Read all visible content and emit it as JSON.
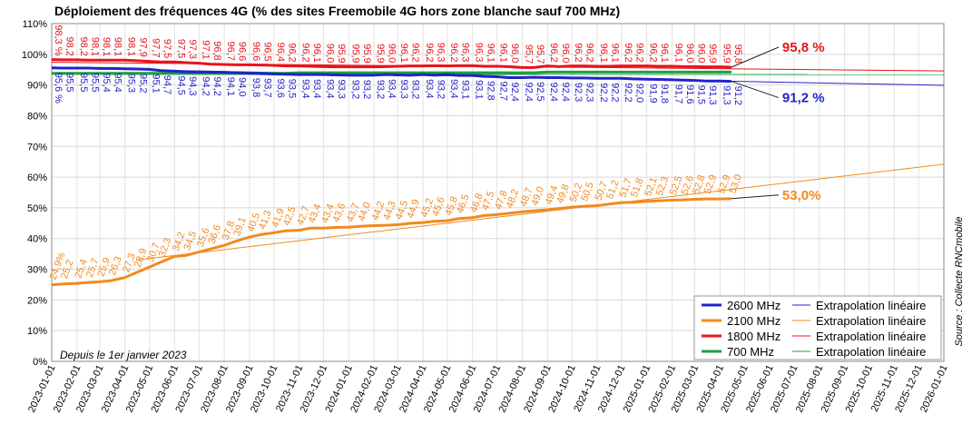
{
  "chart_data": {
    "type": "line",
    "title": "Déploiement des fréquences 4G (% des sites Freemobile 4G hors zone blanche sauf 700 MHz)",
    "note": "Depuis le 1er janvier 2023",
    "source": "Source : Collecte RNCmobile",
    "grid": true,
    "legend": "lower right",
    "xlim": [
      "2023-01-01",
      "2026-01-01"
    ],
    "xticks": [
      "2023-01-01",
      "2023-02-01",
      "2023-03-01",
      "2023-04-01",
      "2023-05-01",
      "2023-06-01",
      "2023-07-01",
      "2023-08-01",
      "2023-09-01",
      "2023-10-01",
      "2023-11-01",
      "2023-12-01",
      "2024-01-01",
      "2024-02-01",
      "2024-03-01",
      "2024-04-01",
      "2024-05-01",
      "2024-06-01",
      "2024-07-01",
      "2024-08-01",
      "2024-09-01",
      "2024-10-01",
      "2024-11-01",
      "2024-12-01",
      "2025-01-01",
      "2025-02-01",
      "2025-03-01",
      "2025-04-01",
      "2025-05-01",
      "2025-06-01",
      "2025-07-01",
      "2025-08-01",
      "2025-09-01",
      "2025-10-01",
      "2025-11-01",
      "2025-12-01",
      "2026-01-01"
    ],
    "ylim": [
      0,
      110
    ],
    "yticks": [
      {
        "value": 0,
        "label": "0%"
      },
      {
        "value": 10,
        "label": "10%"
      },
      {
        "value": 20,
        "label": "20%"
      },
      {
        "value": 30,
        "label": "30%"
      },
      {
        "value": 40,
        "label": "40%"
      },
      {
        "value": 50,
        "label": "50%"
      },
      {
        "value": 60,
        "label": "60%"
      },
      {
        "value": 70,
        "label": "70%"
      },
      {
        "value": 80,
        "label": "80%"
      },
      {
        "value": 90,
        "label": "90%"
      },
      {
        "value": 100,
        "label": "100%"
      },
      {
        "value": 110,
        "label": "110%"
      }
    ],
    "x": [
      "2023-01-01",
      "2023-01-15",
      "2023-02-01",
      "2023-02-15",
      "2023-03-01",
      "2023-03-15",
      "2023-04-01",
      "2023-04-15",
      "2023-05-01",
      "2023-05-15",
      "2023-06-01",
      "2023-06-15",
      "2023-07-01",
      "2023-07-15",
      "2023-08-01",
      "2023-08-15",
      "2023-09-01",
      "2023-09-15",
      "2023-10-01",
      "2023-10-15",
      "2023-11-01",
      "2023-11-15",
      "2023-12-01",
      "2023-12-15",
      "2024-01-01",
      "2024-01-15",
      "2024-02-01",
      "2024-02-15",
      "2024-03-01",
      "2024-03-15",
      "2024-04-01",
      "2024-04-15",
      "2024-05-01",
      "2024-05-15",
      "2024-06-01",
      "2024-06-15",
      "2024-07-01",
      "2024-07-15",
      "2024-08-01",
      "2024-08-15",
      "2024-09-01",
      "2024-09-15",
      "2024-10-01",
      "2024-10-15",
      "2024-11-01",
      "2024-11-15",
      "2024-12-01",
      "2024-12-15",
      "2025-01-01",
      "2025-01-15",
      "2025-02-01",
      "2025-02-15",
      "2025-03-01",
      "2025-03-15",
      "2025-04-01",
      "2025-04-15"
    ],
    "series": [
      {
        "name": "2600 MHz",
        "color": "#2323c8",
        "label_side": "below",
        "end_label": "91,2 %",
        "values": [
          95.6,
          95.5,
          95.5,
          95.5,
          95.4,
          95.4,
          95.3,
          95.2,
          95.1,
          94.7,
          94.5,
          94.3,
          94.2,
          94.2,
          94.1,
          94.0,
          93.8,
          93.7,
          93.6,
          93.5,
          93.4,
          93.4,
          93.4,
          93.3,
          93.2,
          93.2,
          93.2,
          93.4,
          93.3,
          93.2,
          93.4,
          93.2,
          93.4,
          93.1,
          93.1,
          92.8,
          92.7,
          92.4,
          92.4,
          92.5,
          92.4,
          92.4,
          92.3,
          92.3,
          92.2,
          92.2,
          92.2,
          92.0,
          91.9,
          91.8,
          91.7,
          91.6,
          91.5,
          91.3,
          91.3,
          91.2
        ],
        "value_labels": [
          "95,6 %",
          "95,5",
          "95,5",
          "95,5",
          "95,4",
          "95,4",
          "95,3",
          "95,2",
          "95,1",
          "94,7",
          "94,5",
          "94,3",
          "94,2",
          "94,2",
          "94,1",
          "94,0",
          "93,8",
          "93,7",
          "93,6",
          "93,5",
          "93,4",
          "93,4",
          "93,4",
          "93,3",
          "93,2",
          "93,2",
          "93,2",
          "93,4",
          "93,3",
          "93,2",
          "93,4",
          "93,2",
          "93,4",
          "93,1",
          "93,1",
          "92,8",
          "92,7",
          "92,4",
          "92,4",
          "92,5",
          "92,4",
          "92,4",
          "92,3",
          "92,3",
          "92,2",
          "92,2",
          "92,2",
          "92,0",
          "91,9",
          "91,8",
          "91,7",
          "91,6",
          "91,5",
          "91,3",
          "91,3",
          "91,2"
        ],
        "extrapolation": {
          "name": "Extrapolation linéaire",
          "x": [
            "2023-01-01",
            "2026-01-01"
          ],
          "values": [
            95.5,
            89.9
          ]
        }
      },
      {
        "name": "2100 MHz",
        "color": "#f28a1e",
        "label_side": "above",
        "end_label": "53,0%",
        "values": [
          24.9,
          25.2,
          25.4,
          25.7,
          25.9,
          26.3,
          27.3,
          28.9,
          30.7,
          32.3,
          34.2,
          34.5,
          35.6,
          36.6,
          37.8,
          39.1,
          40.5,
          41.3,
          41.9,
          42.5,
          42.7,
          43.4,
          43.4,
          43.6,
          43.7,
          44.0,
          44.2,
          44.3,
          44.5,
          44.9,
          45.2,
          45.6,
          45.8,
          46.5,
          46.8,
          47.5,
          47.8,
          48.2,
          48.7,
          49.0,
          49.4,
          49.8,
          50.2,
          50.5,
          50.7,
          51.2,
          51.7,
          51.8,
          52.1,
          52.3,
          52.5,
          52.6,
          52.8,
          52.9,
          52.9,
          53.0
        ],
        "value_labels": [
          "24,9%",
          "25,2",
          "25,4",
          "25,7",
          "25,9",
          "26,3",
          "27,3",
          "28,9",
          "30,7",
          "32,3",
          "34,2",
          "34,5",
          "35,6",
          "36,6",
          "37,8",
          "39,1",
          "40,5",
          "41,3",
          "41,9",
          "42,5",
          "42,7",
          "43,4",
          "43,4",
          "43,6",
          "43,7",
          "44,0",
          "44,2",
          "44,3",
          "44,5",
          "44,9",
          "45,2",
          "45,6",
          "45,8",
          "46,5",
          "46,8",
          "47,5",
          "47,8",
          "48,2",
          "48,7",
          "49,0",
          "49,4",
          "49,8",
          "50,2",
          "50,5",
          "50,7",
          "51,2",
          "51,7",
          "51,8",
          "52,1",
          "52,3",
          "52,5",
          "52,6",
          "52,8",
          "52,9",
          "52,9",
          "53,0"
        ],
        "extrapolation": {
          "name": "Extrapolation linéaire",
          "x": [
            "2023-04-15",
            "2026-01-01"
          ],
          "values": [
            33.0,
            64.2
          ]
        }
      },
      {
        "name": "1800 MHz",
        "color": "#e8141c",
        "label_side": "top",
        "end_label": "95,8 %",
        "values": [
          98.3,
          98.2,
          98.2,
          98.1,
          98.1,
          98.1,
          98.1,
          97.9,
          97.7,
          97.5,
          97.5,
          97.3,
          97.1,
          96.8,
          96.7,
          96.6,
          96.6,
          96.5,
          96.4,
          96.2,
          96.2,
          96.1,
          96.0,
          95.9,
          95.9,
          95.9,
          95.9,
          96.0,
          96.1,
          96.2,
          96.2,
          96.3,
          96.2,
          96.3,
          96.3,
          96.1,
          96.1,
          96.0,
          95.7,
          95.7,
          96.2,
          96.0,
          96.2,
          96.2,
          96.1,
          96.1,
          96.2,
          96.2,
          96.2,
          96.1,
          96.1,
          96.0,
          96.0,
          95.9,
          95.9,
          95.8
        ],
        "value_labels": [
          "98,3 %",
          "98,2",
          "98,2",
          "98,1",
          "98,1",
          "98,1",
          "98,1",
          "97,9",
          "97,7",
          "97,5",
          "97,5",
          "97,3",
          "97,1",
          "96,8",
          "96,7",
          "96,6",
          "96,6",
          "96,5",
          "96,4",
          "96,2",
          "96,2",
          "96,1",
          "96,0",
          "95,9",
          "95,9",
          "95,9",
          "95,9",
          "96,0",
          "96,1",
          "96,2",
          "96,2",
          "96,3",
          "96,2",
          "96,3",
          "96,3",
          "96,1",
          "96,1",
          "96,0",
          "95,7",
          "95,7",
          "96,2",
          "96,0",
          "96,2",
          "96,2",
          "96,1",
          "96,1",
          "96,2",
          "96,2",
          "96,2",
          "96,1",
          "96,1",
          "96,0",
          "96,0",
          "95,9",
          "95,9",
          "95,8"
        ],
        "extrapolation": {
          "name": "Extrapolation linéaire",
          "x": [
            "2023-01-01",
            "2026-01-01"
          ],
          "values": [
            97.4,
            94.6
          ]
        }
      },
      {
        "name": "700 MHz",
        "color": "#1fa040",
        "values": [
          93.8,
          93.8,
          93.8,
          93.8,
          93.8,
          93.8,
          93.8,
          93.8,
          93.8,
          93.8,
          93.8,
          93.8,
          93.8,
          93.8,
          93.8,
          93.8,
          93.8,
          93.8,
          93.8,
          93.8,
          94.0,
          94.0,
          94.0,
          94.0,
          94.0,
          94.0,
          94.0,
          94.0,
          94.0,
          94.0,
          94.0,
          94.0,
          94.0,
          94.0,
          94.0,
          94.0,
          94.0,
          94.0,
          94.0,
          94.0,
          94.2,
          94.2,
          94.2,
          94.2,
          94.2,
          94.2,
          94.2,
          94.2,
          94.2,
          94.2,
          94.2,
          94.2,
          94.2,
          94.2,
          94.2,
          94.2
        ],
        "extrapolation": {
          "name": "Extrapolation linéaire",
          "x": [
            "2023-01-01",
            "2026-01-01"
          ],
          "values": [
            93.5,
            93.4
          ]
        }
      }
    ]
  }
}
